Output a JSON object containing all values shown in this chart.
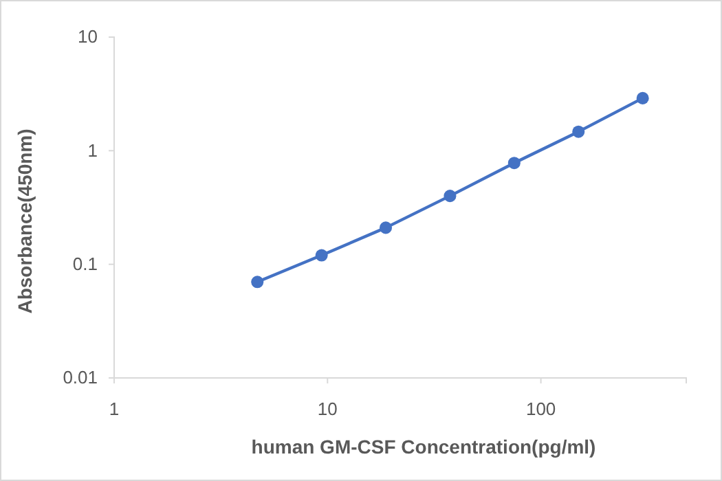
{
  "chart_data": {
    "type": "line",
    "xlabel": "human GM-CSF Concentration(pg/ml)",
    "ylabel": "Absorbance(450nm)",
    "x": [
      4.69,
      9.38,
      18.75,
      37.5,
      75,
      150,
      300
    ],
    "series": [
      {
        "color": "#4472c4",
        "values": [
          0.07,
          0.12,
          0.21,
          0.4,
          0.78,
          1.47,
          2.9
        ]
      }
    ],
    "log": "xy",
    "xlim": [
      1,
      480
    ],
    "ylim": [
      0.01,
      10
    ],
    "xticks": [
      1,
      10,
      100
    ],
    "yticks": [
      0.01,
      0.1,
      1,
      10
    ],
    "marker": "circle",
    "line_style": "solid"
  }
}
